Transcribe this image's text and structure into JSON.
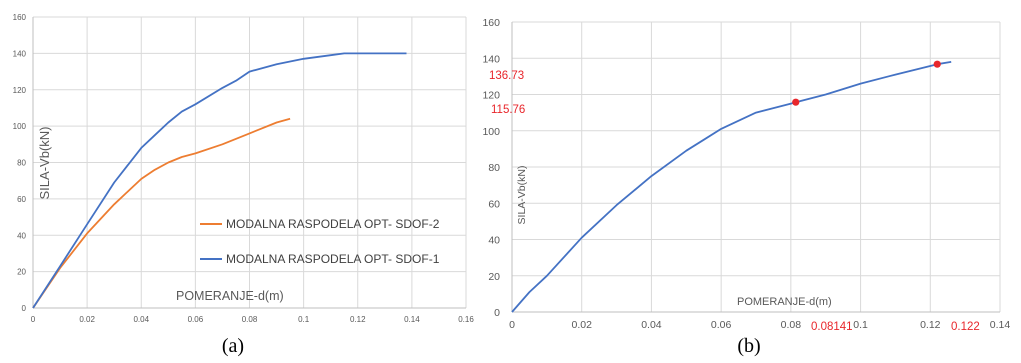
{
  "chart_data": [
    {
      "type": "line",
      "caption": "(a)",
      "xlabel": "POMERANJE-d(m)",
      "ylabel": "SILA-Vb(kN)",
      "xlim": [
        0,
        0.16
      ],
      "ylim": [
        0,
        160
      ],
      "xticks": [
        "0",
        "0.02",
        "0.04",
        "0.06",
        "0.08",
        "0.1",
        "0.12",
        "0.14",
        "0.16"
      ],
      "yticks": [
        "0",
        "20",
        "40",
        "60",
        "80",
        "100",
        "120",
        "140",
        "160"
      ],
      "grid": true,
      "legend": "center-right",
      "series": [
        {
          "name": "MODALNA RASPODELA OPT- SDOF-2",
          "color": "#ed7d31",
          "x": [
            0,
            0.01,
            0.02,
            0.03,
            0.035,
            0.04,
            0.045,
            0.05,
            0.055,
            0.06,
            0.07,
            0.08,
            0.09,
            0.095
          ],
          "y": [
            0,
            22,
            41,
            57,
            64,
            71,
            76,
            80,
            83,
            85,
            90,
            96,
            102,
            104
          ]
        },
        {
          "name": "MODALNA RASPODELA OPT- SDOF-1",
          "color": "#4472c4",
          "x": [
            0,
            0.01,
            0.02,
            0.03,
            0.04,
            0.045,
            0.05,
            0.055,
            0.06,
            0.07,
            0.075,
            0.08,
            0.09,
            0.1,
            0.11,
            0.115,
            0.12,
            0.138
          ],
          "y": [
            0,
            23,
            46,
            69,
            88,
            95,
            102,
            108,
            112,
            121,
            125,
            130,
            134,
            137,
            139,
            140,
            140,
            140
          ]
        }
      ]
    },
    {
      "type": "line",
      "caption": "(b)",
      "xlabel": "POMERANJE-d(m)",
      "ylabel": "SILA-Vb(kN)",
      "xlim": [
        0,
        0.14
      ],
      "ylim": [
        0,
        160
      ],
      "xticks": [
        "0",
        "0.02",
        "0.04",
        "0.06",
        "0.08",
        "0.1",
        "0.12",
        "0.14"
      ],
      "yticks": [
        "0",
        "20",
        "40",
        "60",
        "80",
        "100",
        "120",
        "140",
        "160"
      ],
      "grid": true,
      "series": [
        {
          "color": "#4472c4",
          "x": [
            0,
            0.005,
            0.01,
            0.02,
            0.03,
            0.04,
            0.05,
            0.055,
            0.06,
            0.07,
            0.08,
            0.08141,
            0.09,
            0.1,
            0.11,
            0.122,
            0.126
          ],
          "y": [
            0,
            11,
            20,
            41,
            59,
            75,
            89,
            95,
            101,
            110,
            115,
            115.76,
            120,
            126,
            131,
            136.73,
            138
          ]
        }
      ],
      "markers": [
        {
          "x": 0.08141,
          "y": 115.76,
          "color": "#e8262b"
        },
        {
          "x": 0.122,
          "y": 136.73,
          "color": "#e8262b"
        }
      ],
      "annotations": {
        "y_values": [
          "136.73",
          "115.76"
        ],
        "x_values": [
          "0.08141",
          "0.122"
        ],
        "color": "#e8262b"
      }
    }
  ]
}
